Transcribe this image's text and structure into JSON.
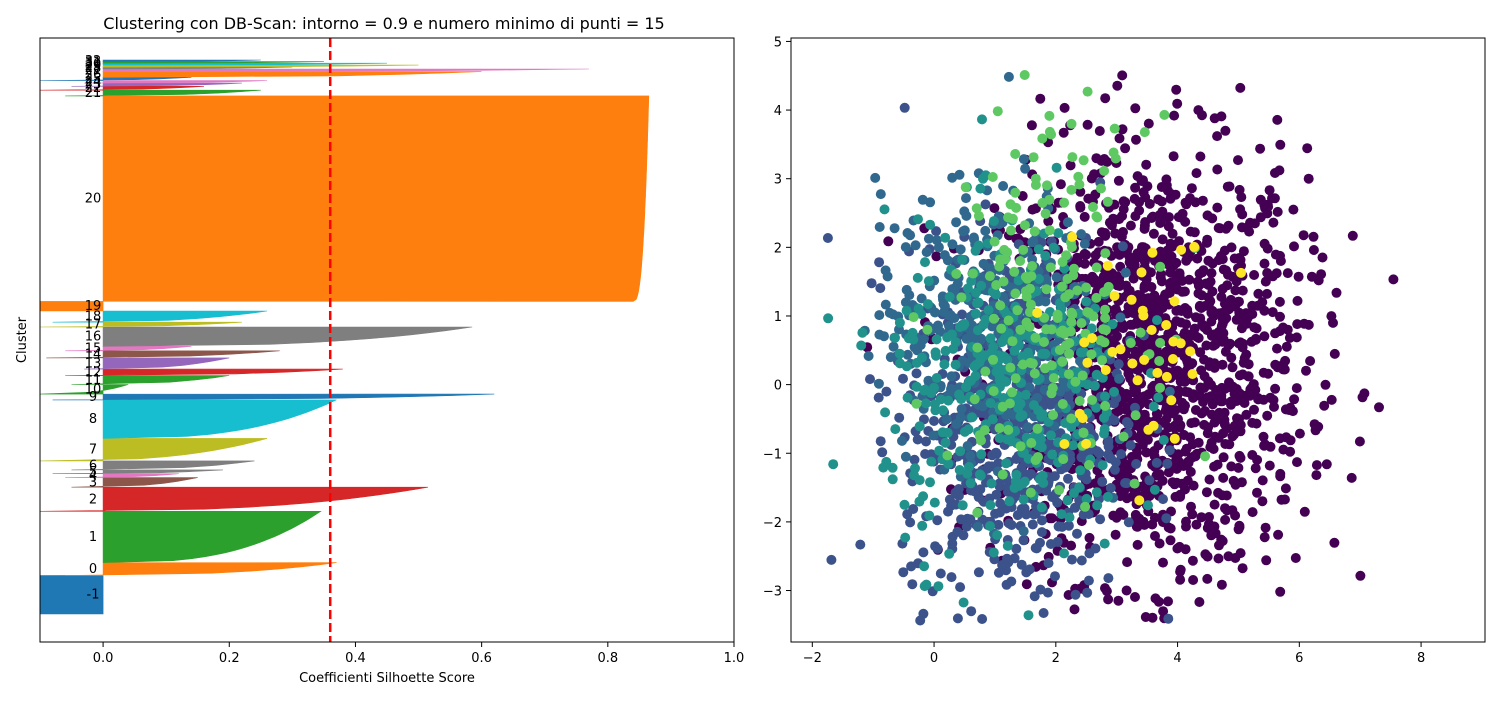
{
  "chart_data": [
    {
      "type": "silhouette",
      "title": "Clustering con DB-Scan: intorno = 0.9 e numero minimo di punti = 15",
      "xlabel": "Coefficienti Silhoette Score",
      "ylabel": "Cluster",
      "xlim": [
        -0.1,
        1.0
      ],
      "xticks": [
        "0.0",
        "0.2",
        "0.4",
        "0.6",
        "0.8",
        "1.0"
      ],
      "xtick_values": [
        0.0,
        0.2,
        0.4,
        0.6,
        0.8,
        1.0
      ],
      "average_silhouette": 0.36,
      "visible_cluster_labels": [
        "-1",
        "0",
        "1",
        "2",
        "3",
        "4",
        "5",
        "6",
        "7",
        "8",
        "9",
        "10",
        "11",
        "12",
        "13",
        "14",
        "15",
        "16",
        "17",
        "18",
        "19",
        "20",
        "21"
      ],
      "grid": false,
      "clusters": [
        {
          "label": "-1",
          "max": -0.1,
          "min": -0.1,
          "size": 120,
          "color": "#1f77b4"
        },
        {
          "label": "0",
          "max": 0.37,
          "min": -0.06,
          "size": 40,
          "color": "#ff7f0e"
        },
        {
          "label": "1",
          "max": 0.345,
          "min": 0.0,
          "size": 160,
          "color": "#2ca02c"
        },
        {
          "label": "2",
          "max": 0.515,
          "min": -0.1,
          "size": 75,
          "color": "#d62728"
        },
        {
          "label": "3",
          "max": 0.15,
          "min": -0.05,
          "size": 30,
          "color": "#8c564b"
        },
        {
          "label": "4",
          "max": 0.12,
          "min": -0.06,
          "size": 12,
          "color": "#e377c2"
        },
        {
          "label": "5",
          "max": 0.19,
          "min": -0.08,
          "size": 12,
          "color": "#7f7f7f"
        },
        {
          "label": "6",
          "max": 0.24,
          "min": -0.05,
          "size": 28,
          "color": "#7f7f7f"
        },
        {
          "label": "7",
          "max": 0.26,
          "min": -0.1,
          "size": 70,
          "color": "#bcbd22"
        },
        {
          "label": "8",
          "max": 0.37,
          "min": 0.0,
          "size": 120,
          "color": "#17becf"
        },
        {
          "label": "9",
          "max": 0.62,
          "min": -0.08,
          "size": 18,
          "color": "#1f77b4"
        },
        {
          "label": "10",
          "max": 0.04,
          "min": -0.1,
          "size": 30,
          "color": "#2ca02c"
        },
        {
          "label": "11",
          "max": 0.2,
          "min": -0.05,
          "size": 28,
          "color": "#2ca02c"
        },
        {
          "label": "12",
          "max": 0.38,
          "min": -0.06,
          "size": 20,
          "color": "#d62728"
        },
        {
          "label": "13",
          "max": 0.2,
          "min": -0.03,
          "size": 35,
          "color": "#9467bd"
        },
        {
          "label": "14",
          "max": 0.28,
          "min": -0.09,
          "size": 22,
          "color": "#8c564b"
        },
        {
          "label": "15",
          "max": 0.14,
          "min": -0.06,
          "size": 14,
          "color": "#e377c2"
        },
        {
          "label": "16",
          "max": 0.585,
          "min": 0.0,
          "size": 60,
          "color": "#7f7f7f"
        },
        {
          "label": "17",
          "max": 0.22,
          "min": -0.1,
          "size": 15,
          "color": "#bcbd22"
        },
        {
          "label": "18",
          "max": 0.26,
          "min": -0.08,
          "size": 35,
          "color": "#17becf"
        },
        {
          "label": "19",
          "max": -0.1,
          "min": -0.1,
          "size": 30,
          "color": "#ff7f0e"
        },
        {
          "label": "20",
          "max": 0.865,
          "min": 0.84,
          "size": 640,
          "color": "#ff7f0e"
        },
        {
          "label": "21",
          "max": 0.25,
          "min": -0.06,
          "size": 18,
          "color": "#2ca02c"
        },
        {
          "label": "22",
          "max": 0.16,
          "min": -0.1,
          "size": 12,
          "color": "#d62728"
        },
        {
          "label": "23",
          "max": 0.22,
          "min": -0.05,
          "size": 10,
          "color": "#9467bd"
        },
        {
          "label": "24",
          "max": 0.26,
          "min": -0.03,
          "size": 8,
          "color": "#e377c2"
        },
        {
          "label": "25",
          "max": 0.14,
          "min": -0.1,
          "size": 10,
          "color": "#1f77b4"
        },
        {
          "label": "26",
          "max": 0.6,
          "min": 0.0,
          "size": 18,
          "color": "#ff7f0e"
        },
        {
          "label": "27",
          "max": 0.77,
          "min": 0.0,
          "size": 8,
          "color": "#e377c2"
        },
        {
          "label": "28",
          "max": 0.3,
          "min": 0.0,
          "size": 6,
          "color": "#7f7f7f"
        },
        {
          "label": "29",
          "max": 0.5,
          "min": 0.0,
          "size": 6,
          "color": "#bcbd22"
        },
        {
          "label": "30",
          "max": 0.45,
          "min": 0.0,
          "size": 6,
          "color": "#17becf"
        },
        {
          "label": "31",
          "max": 0.35,
          "min": 0.0,
          "size": 5,
          "color": "#2ca02c"
        },
        {
          "label": "32",
          "max": 0.25,
          "min": 0.0,
          "size": 5,
          "color": "#1f77b4"
        }
      ]
    },
    {
      "type": "scatter",
      "xlim": [
        -2.35,
        9.05
      ],
      "ylim": [
        -3.75,
        5.05
      ],
      "xticks": [
        "−2",
        "0",
        "2",
        "4",
        "6",
        "8"
      ],
      "xtick_values": [
        -2,
        0,
        2,
        4,
        6,
        8
      ],
      "yticks": [
        "−3",
        "−2",
        "−1",
        "0",
        "1",
        "2",
        "3",
        "4",
        "5"
      ],
      "ytick_values": [
        -3,
        -2,
        -1,
        0,
        1,
        2,
        3,
        4,
        5
      ],
      "grid": false,
      "colormap": "viridis",
      "series": [
        {
          "color": "#440154",
          "center": [
            3.6,
            0.3
          ],
          "spread": [
            1.25,
            1.55
          ],
          "count": 1500
        },
        {
          "color": "#3b528b",
          "center": [
            1.3,
            -0.6
          ],
          "spread": [
            0.9,
            1.3
          ],
          "count": 650
        },
        {
          "color": "#31688e",
          "center": [
            0.9,
            0.9
          ],
          "spread": [
            0.9,
            1.0
          ],
          "count": 400
        },
        {
          "color": "#21918c",
          "center": [
            1.2,
            -0.1
          ],
          "spread": [
            1.0,
            1.2
          ],
          "count": 350
        },
        {
          "color": "#5ec962",
          "center": [
            1.9,
            1.2
          ],
          "spread": [
            0.8,
            1.3
          ],
          "count": 200
        },
        {
          "color": "#fde725",
          "center": [
            3.4,
            0.4
          ],
          "spread": [
            0.7,
            0.9
          ],
          "count": 40
        }
      ]
    }
  ]
}
